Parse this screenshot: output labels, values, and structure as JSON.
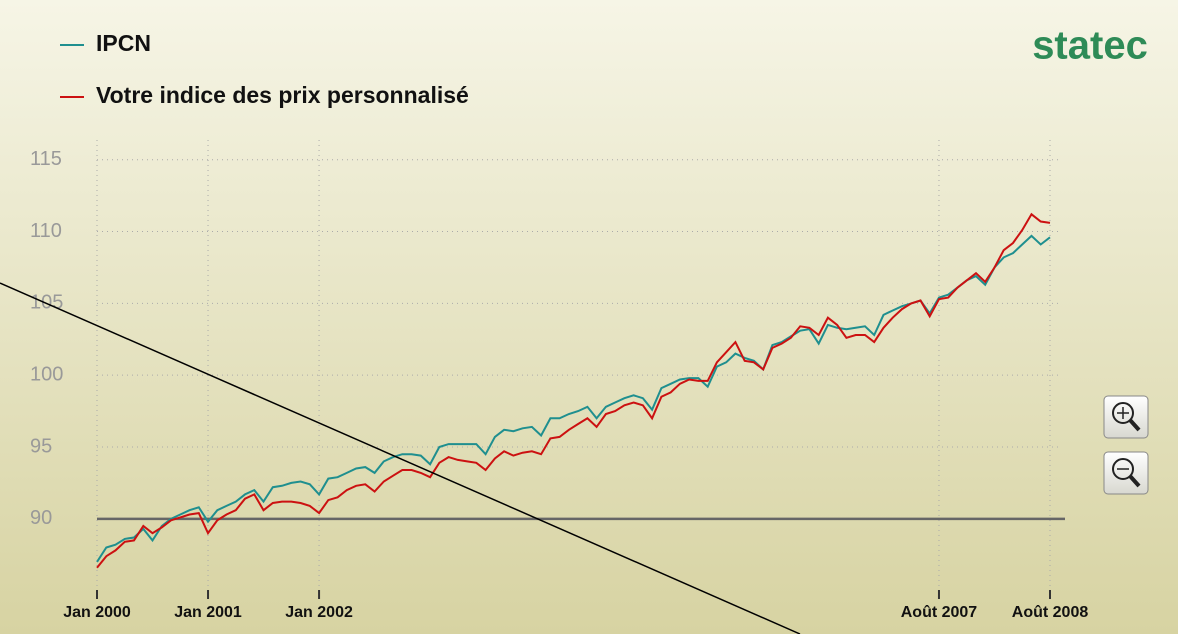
{
  "logo": "statec",
  "chart_data": {
    "type": "line",
    "categories": [
      "Jan 2000",
      null,
      null,
      null,
      null,
      null,
      null,
      null,
      null,
      null,
      null,
      null,
      "Jan 2001",
      null,
      null,
      null,
      null,
      null,
      null,
      null,
      null,
      null,
      null,
      null,
      "Jan 2002",
      null,
      null,
      null,
      null,
      null,
      null,
      null,
      null,
      null,
      null,
      null,
      null,
      null,
      null,
      null,
      null,
      null,
      null,
      null,
      null,
      null,
      null,
      null,
      null,
      null,
      null,
      null,
      null,
      null,
      null,
      null,
      null,
      null,
      null,
      null,
      null,
      null,
      null,
      null,
      null,
      null,
      null,
      null,
      null,
      null,
      null,
      null,
      null,
      null,
      null,
      null,
      null,
      null,
      null,
      null,
      null,
      null,
      null,
      null,
      null,
      null,
      null,
      null,
      null,
      null,
      null,
      "Août 2007",
      null,
      null,
      null,
      null,
      null,
      null,
      null,
      null,
      null,
      null,
      null,
      "Août 2008"
    ],
    "series": [
      {
        "name": "IPCN",
        "color": "#1f8f8f",
        "values": [
          87.0,
          88.0,
          88.2,
          88.6,
          88.7,
          89.3,
          88.5,
          89.5,
          90.0,
          90.3,
          90.6,
          90.8,
          89.8,
          90.6,
          90.9,
          91.2,
          91.7,
          92.0,
          91.2,
          92.2,
          92.3,
          92.5,
          92.6,
          92.4,
          91.7,
          92.8,
          92.9,
          93.2,
          93.5,
          93.6,
          93.2,
          94.0,
          94.3,
          94.5,
          94.5,
          94.4,
          93.8,
          95.0,
          95.2,
          95.2,
          95.2,
          95.2,
          94.5,
          95.7,
          96.2,
          96.1,
          96.3,
          96.4,
          95.8,
          97.0,
          97.0,
          97.3,
          97.5,
          97.8,
          97.0,
          97.8,
          98.1,
          98.4,
          98.6,
          98.4,
          97.6,
          99.1,
          99.4,
          99.7,
          99.8,
          99.8,
          99.2,
          100.6,
          100.9,
          101.5,
          101.2,
          101.0,
          100.4,
          102.1,
          102.3,
          102.7,
          103.1,
          103.2,
          102.2,
          103.5,
          103.3,
          103.2,
          103.3,
          103.4,
          102.8,
          104.2,
          104.5,
          104.8,
          105.0,
          105.2,
          104.3,
          105.4,
          105.6,
          106.1,
          106.6,
          106.9,
          106.3,
          107.5,
          108.2,
          108.5,
          109.1,
          109.7,
          109.1,
          109.6
        ]
      },
      {
        "name": "Votre indice des prix personnalisé",
        "color": "#cc1111",
        "values": [
          86.6,
          87.4,
          87.8,
          88.4,
          88.5,
          89.5,
          89.0,
          89.4,
          89.9,
          90.1,
          90.3,
          90.4,
          89.0,
          89.9,
          90.3,
          90.6,
          91.4,
          91.7,
          90.6,
          91.1,
          91.2,
          91.2,
          91.1,
          90.9,
          90.4,
          91.3,
          91.5,
          92.0,
          92.3,
          92.4,
          91.9,
          92.6,
          93.0,
          93.4,
          93.4,
          93.2,
          92.9,
          93.9,
          94.3,
          94.1,
          94.0,
          93.9,
          93.4,
          94.2,
          94.7,
          94.4,
          94.6,
          94.7,
          94.5,
          95.6,
          95.7,
          96.2,
          96.6,
          97.0,
          96.4,
          97.3,
          97.5,
          97.9,
          98.1,
          97.9,
          97.0,
          98.5,
          98.8,
          99.4,
          99.7,
          99.6,
          99.6,
          100.9,
          101.6,
          102.3,
          101.0,
          100.9,
          100.4,
          101.9,
          102.2,
          102.6,
          103.4,
          103.3,
          102.8,
          104.0,
          103.5,
          102.6,
          102.8,
          102.8,
          102.3,
          103.3,
          104.0,
          104.6,
          105.0,
          105.2,
          104.1,
          105.3,
          105.4,
          106.1,
          106.6,
          107.1,
          106.5,
          107.5,
          108.7,
          109.2,
          110.1,
          111.2,
          110.7,
          110.6
        ]
      }
    ],
    "ylim": [
      84,
      117
    ],
    "yticks": [
      90,
      95,
      100,
      105,
      110,
      115
    ],
    "baseline": 90,
    "grid": true
  }
}
